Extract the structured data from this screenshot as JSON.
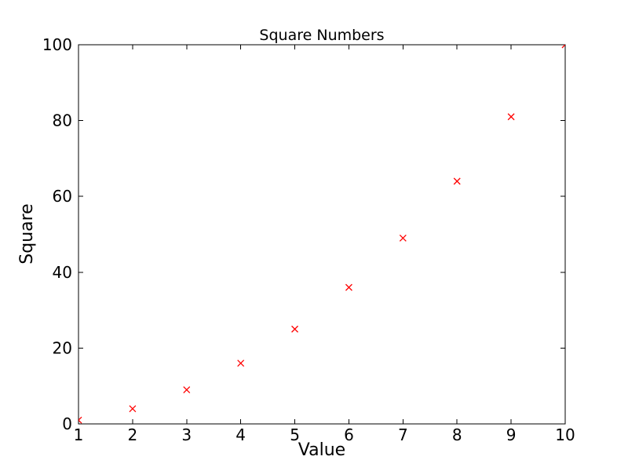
{
  "figure": {
    "background_color": "#ffffff",
    "axis_color": "#000000",
    "text_color": "#000000"
  },
  "chart_data": {
    "type": "scatter",
    "title": "Square Numbers",
    "xlabel": "Value",
    "ylabel": "Square",
    "x": [
      1,
      2,
      3,
      4,
      5,
      6,
      7,
      8,
      9,
      10
    ],
    "y": [
      1,
      4,
      9,
      16,
      25,
      36,
      49,
      64,
      81,
      100
    ],
    "marker": "x",
    "marker_color": "#ff0000",
    "marker_size": 8,
    "xlim": [
      1,
      10
    ],
    "ylim": [
      0,
      100
    ],
    "xticks": [
      1,
      2,
      3,
      4,
      5,
      6,
      7,
      8,
      9,
      10
    ],
    "yticks": [
      0,
      20,
      40,
      60,
      80,
      100
    ],
    "grid": false,
    "legend": false
  }
}
